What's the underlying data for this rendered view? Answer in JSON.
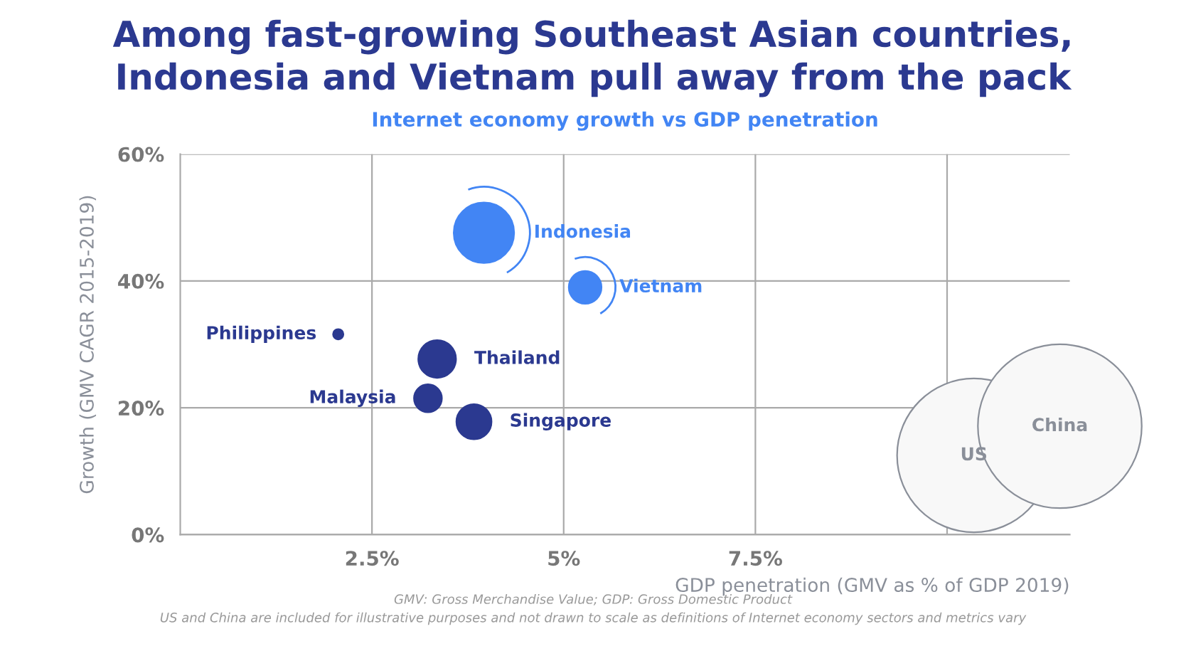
{
  "chart_data": {
    "type": "bubble",
    "title": "Among fast-growing Southeast Asian countries,\nIndonesia and Vietnam pull away from the pack",
    "subtitle": "Internet economy growth vs GDP penetration",
    "xlabel": "GDP penetration (GMV as % of GDP 2019)",
    "ylabel": "Growth (GMV CAGR 2015-2019)",
    "series": [
      {
        "x": [
          3.96,
          5.28,
          2.06,
          3.35,
          3.23,
          3.83,
          10.35,
          11.47
        ],
        "values": [
          47.6,
          39.0,
          31.6,
          27.7,
          21.5,
          17.8,
          12.5,
          17.1
        ],
        "sizes": [
          0.136,
          0.04,
          0.004,
          0.053,
          0.029,
          0.046,
          0.88,
          1
        ],
        "colors": [
          "#4285f4",
          "#4285f4",
          "#2b3990",
          "#2b3990",
          "#2b3990",
          "#2b3990",
          "#f8f8f8",
          "#f8f8f8"
        ]
      }
    ],
    "annotations": [
      {
        "text": "Indonesia",
        "x": 3.96,
        "y": 47.6
      },
      {
        "text": "Vietnam",
        "x": 5.28,
        "y": 39.0
      },
      {
        "text": "Philippines",
        "x": 2.06,
        "y": 31.6
      },
      {
        "text": "Thailand",
        "x": 3.35,
        "y": 27.7
      },
      {
        "text": "Malaysia",
        "x": 3.23,
        "y": 21.5
      },
      {
        "text": "Singapore",
        "x": 3.83,
        "y": 17.8
      },
      {
        "text": "US",
        "x": 10.35,
        "y": 12.5
      },
      {
        "text": "China",
        "x": 11.47,
        "y": 17.1
      },
      "GMV: Gross Merchandise Value; GDP: Gross Domestic Product",
      "US and China are included for illustrative purposes and not drawn to scale as definitions of Internet economy sectors and metrics vary"
    ],
    "xlim": [
      0,
      11.6
    ],
    "ylim": [
      0,
      60
    ],
    "xticks": [
      {
        "value": 2.5,
        "label": "2.5%"
      },
      {
        "value": 5,
        "label": "5%"
      },
      {
        "value": 7.5,
        "label": "7.5%"
      },
      {
        "value": 10,
        "label": null
      }
    ],
    "yticks": [
      {
        "value": 0,
        "label": "0%"
      },
      {
        "value": 20,
        "label": "20%"
      },
      {
        "value": 40,
        "label": "40%"
      },
      {
        "value": 60,
        "label": "60%"
      }
    ],
    "grid": true
  }
}
